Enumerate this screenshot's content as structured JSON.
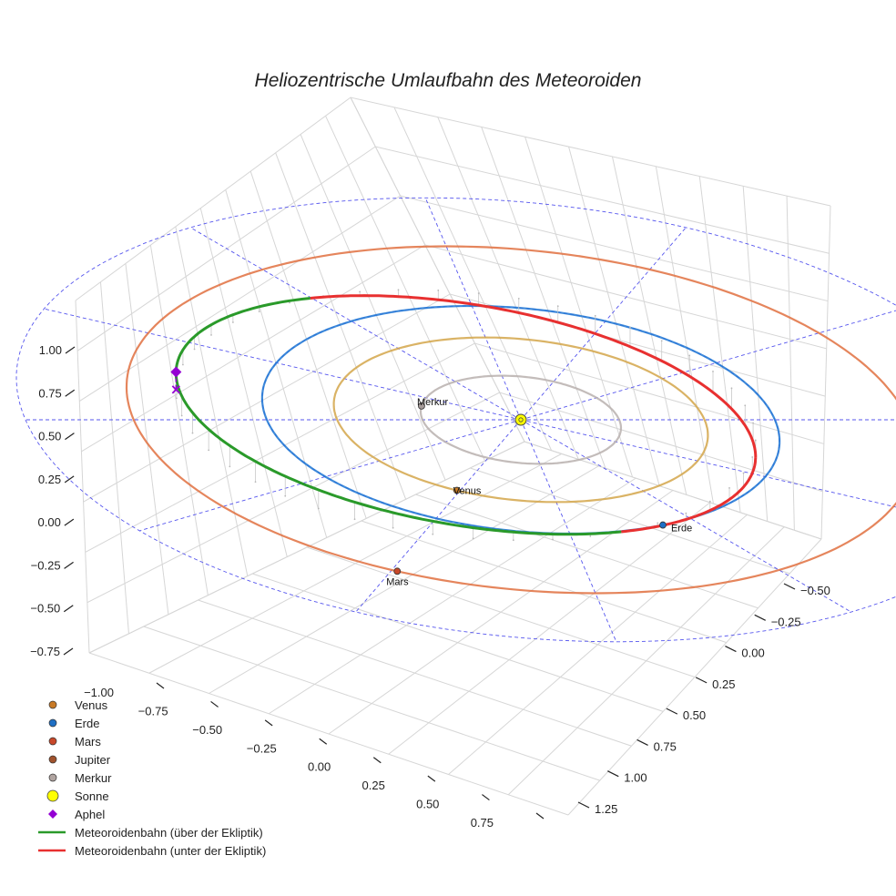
{
  "chart_data": {
    "type": "scatter3d",
    "title": "Heliozentrische Umlaufbahn des Meteoroiden",
    "axes": {
      "z_ticks": [
        "1.00",
        "0.75",
        "0.50",
        "0.25",
        "0.00",
        "−0.25",
        "−0.50",
        "−0.75"
      ],
      "x_ticks": [
        "−1.00",
        "−0.75",
        "−0.50",
        "−0.25",
        "0.00",
        "0.25",
        "0.50",
        "0.75"
      ],
      "y_ticks": [
        "−0.50",
        "−0.25",
        "0.00",
        "0.25",
        "0.50",
        "0.75",
        "1.00",
        "1.25"
      ],
      "x_range": [
        -1.0,
        0.75
      ],
      "y_range": [
        -0.5,
        1.25
      ],
      "z_range": [
        -0.75,
        1.0
      ]
    },
    "orbits": [
      {
        "name": "Merkur",
        "radius_au": 0.387,
        "color": "#b8b0ae"
      },
      {
        "name": "Venus",
        "radius_au": 0.723,
        "color": "#d4a64a"
      },
      {
        "name": "Erde",
        "radius_au": 1.0,
        "color": "#1f77d4"
      },
      {
        "name": "Mars",
        "radius_au": 1.524,
        "color": "#e07040"
      }
    ],
    "planets": [
      {
        "name": "Merkur",
        "label": "Merkur",
        "color": "#a49a98"
      },
      {
        "name": "Venus",
        "label": "Venus",
        "color": "#c87a26"
      },
      {
        "name": "Erde",
        "label": "Erde",
        "color": "#1f6fc4"
      },
      {
        "name": "Mars",
        "label": "Mars",
        "color": "#c8482a"
      },
      {
        "name": "Sonne",
        "label": "",
        "color": "#ffff00"
      }
    ],
    "meteoroid": {
      "above_ecliptic": {
        "name": "Meteoroidenbahn (über der Ekliptik)",
        "color": "#2a9a2a"
      },
      "below_ecliptic": {
        "name": "Meteoroidenbahn (unter der Ekliptik)",
        "color": "#e83030"
      },
      "aphel": {
        "name": "Aphel",
        "color": "#9400d3"
      }
    },
    "grid": true,
    "legend_position": "bottom-left",
    "legend": [
      {
        "label": "Venus",
        "kind": "dot",
        "color": "#c87a26"
      },
      {
        "label": "Erde",
        "kind": "dot",
        "color": "#1f6fc4"
      },
      {
        "label": "Mars",
        "kind": "dot",
        "color": "#c8482a"
      },
      {
        "label": "Jupiter",
        "kind": "dot",
        "color": "#a0522d"
      },
      {
        "label": "Merkur",
        "kind": "dot",
        "color": "#b0a4a0"
      },
      {
        "label": "Sonne",
        "kind": "bigdot",
        "color": "#ffff00"
      },
      {
        "label": "Aphel",
        "kind": "diamond",
        "color": "#9400d3"
      },
      {
        "label": "Meteoroidenbahn (über der Ekliptik)",
        "kind": "line",
        "color": "#2a9a2a"
      },
      {
        "label": "Meteoroidenbahn (unter der Ekliptik)",
        "kind": "line",
        "color": "#e83030"
      }
    ]
  }
}
